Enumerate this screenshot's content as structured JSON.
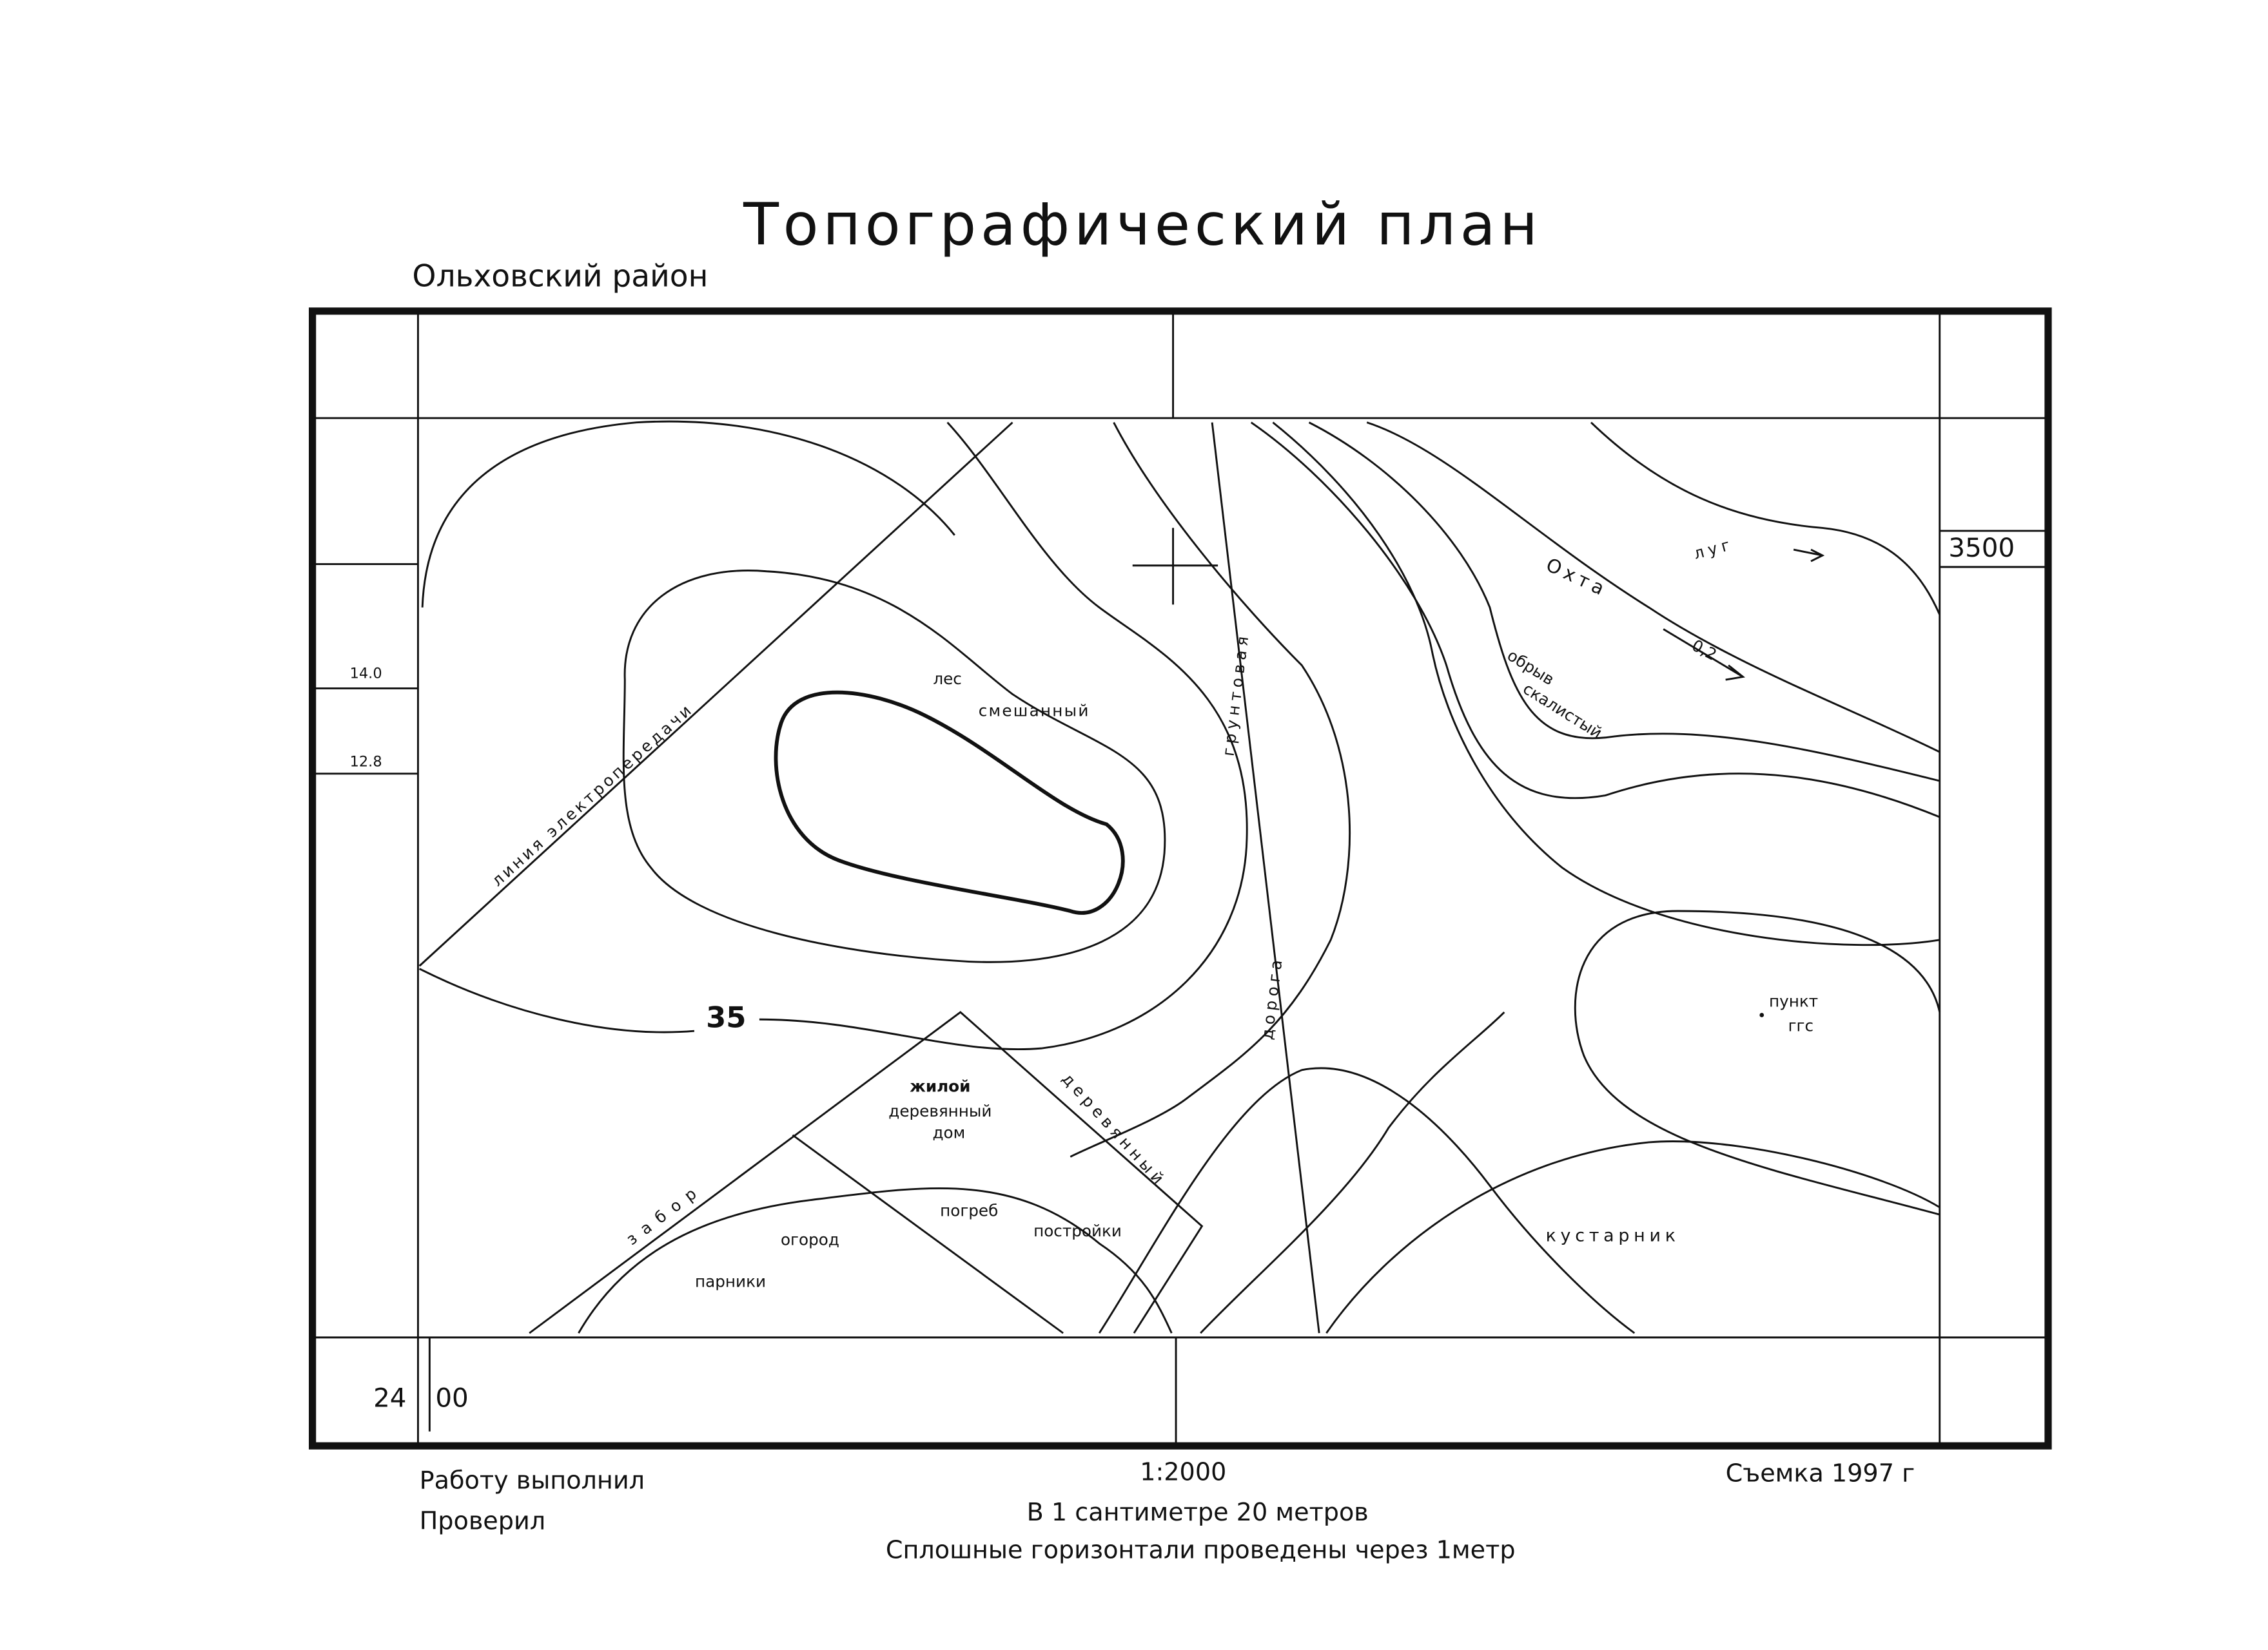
{
  "header": {
    "title": "Топографический план",
    "district": "Ольховский район"
  },
  "frame": {
    "grid_label_right": "3500",
    "grid_label_bottom_left": "24",
    "grid_label_bottom_right": "00",
    "margin_label_1": "14.0",
    "margin_label_2": "12.8"
  },
  "map_labels": {
    "forest": [
      "лес",
      "смешанный"
    ],
    "power_line": "линия электропередачи",
    "road": [
      "грунтовая",
      "дорога"
    ],
    "river": "Охта",
    "meadow": "луг",
    "current_speed": "0,2",
    "cliff": [
      "обрыв",
      "скалистый"
    ],
    "contour": "35",
    "survey_point": [
      "пункт",
      "ггс"
    ],
    "house": [
      "жилой",
      "деревянный",
      "дом"
    ],
    "wood_fence": "деревянный",
    "fence": "забор",
    "garden": "огород",
    "cellar": "погреб",
    "buildings": "постройки",
    "greenhouses": "парники",
    "shrubs": "кустарник"
  },
  "footer": {
    "performed": "Работу выполнил",
    "checked": "Проверил",
    "scale": "1:2000",
    "scale_note": "В 1 сантиметре 20 метров",
    "contour_note": "Сплошные горизонтали проведены через 1метр",
    "survey": "Съемка 1997 г"
  }
}
